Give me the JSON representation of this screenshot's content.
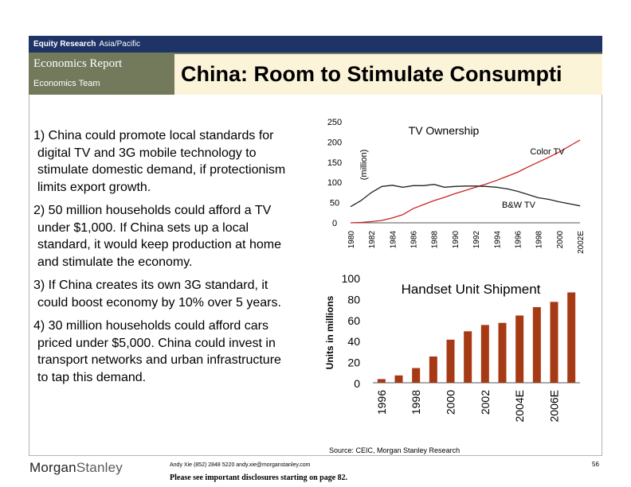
{
  "header": {
    "series_label": "Equity Research",
    "region": "Asia/Pacific",
    "report_type": "Economics Report",
    "team": "Economics Team",
    "title": "China: Room to Stimulate Consumpti"
  },
  "points": [
    {
      "lines": [
        "1) China could promote local standards for",
        "digital TV and 3G mobile technology to",
        "stimulate domestic demand, if protectionism",
        "limits export growth."
      ]
    },
    {
      "lines": [
        "2) 50 million households could afford a TV",
        "under $1,000.  If China sets up a local",
        "standard, it would keep production at home",
        "and stimulate the economy."
      ]
    },
    {
      "lines": [
        "3) If China creates its own 3G standard, it",
        "could boost economy by 10% over 5 years."
      ]
    },
    {
      "lines": [
        "4) 30 million households could afford cars",
        "priced under $5,000.  China could invest in",
        "transport networks and urban infrastructure",
        "to tap this demand."
      ]
    }
  ],
  "chart_data": [
    {
      "type": "line",
      "title": "TV Ownership",
      "ylabel": "(million)",
      "ylim": [
        0,
        250
      ],
      "yticks": [
        "0",
        "50",
        "100",
        "150",
        "200",
        "250"
      ],
      "xticks": [
        "1980",
        "1982",
        "1984",
        "1986",
        "1988",
        "1990",
        "1992",
        "1994",
        "1996",
        "1998",
        "2000",
        "2002E"
      ],
      "x": [
        1980,
        1981,
        1982,
        1983,
        1984,
        1985,
        1986,
        1987,
        1988,
        1989,
        1990,
        1991,
        1992,
        1993,
        1994,
        1995,
        1996,
        1997,
        1998,
        1999,
        2000,
        2001,
        2002
      ],
      "series": [
        {
          "name": "Color TV",
          "color": "#cc2222",
          "values": [
            0,
            1,
            3,
            6,
            12,
            20,
            35,
            45,
            55,
            63,
            72,
            80,
            88,
            96,
            105,
            115,
            125,
            138,
            150,
            162,
            175,
            190,
            205
          ]
        },
        {
          "name": "B&W TV",
          "color": "#222222",
          "values": [
            40,
            55,
            75,
            90,
            93,
            88,
            92,
            92,
            95,
            88,
            90,
            91,
            91,
            90,
            88,
            84,
            78,
            70,
            62,
            58,
            52,
            47,
            42
          ]
        }
      ]
    },
    {
      "type": "bar",
      "title": "Handset Unit Shipment",
      "ylabel": "Units in millions",
      "ylim": [
        0,
        100
      ],
      "yticks": [
        "0",
        "20",
        "40",
        "60",
        "80",
        "100"
      ],
      "categories": [
        "1996",
        "1997",
        "1998",
        "1999",
        "2000",
        "2001",
        "2002",
        "2003",
        "2004E",
        "2005E",
        "2006E",
        "2007E"
      ],
      "xtick_labels": [
        "1996",
        "1998",
        "2000",
        "2002",
        "2004E",
        "2006E"
      ],
      "values": [
        3.5,
        7,
        14,
        25,
        41,
        49,
        55,
        57,
        64,
        72,
        77,
        86
      ],
      "color": "#a63a14"
    }
  ],
  "footer": {
    "source": "Source: CEIC, Morgan Stanley Research",
    "logo_part1": "Morgan",
    "logo_part2": "Stanley",
    "contact": "Andy Xie (852) 2848 5220 andy.xie@morganstanley.com",
    "disclaimer": "Please see important disclosures starting on page 82.",
    "page": "56"
  }
}
